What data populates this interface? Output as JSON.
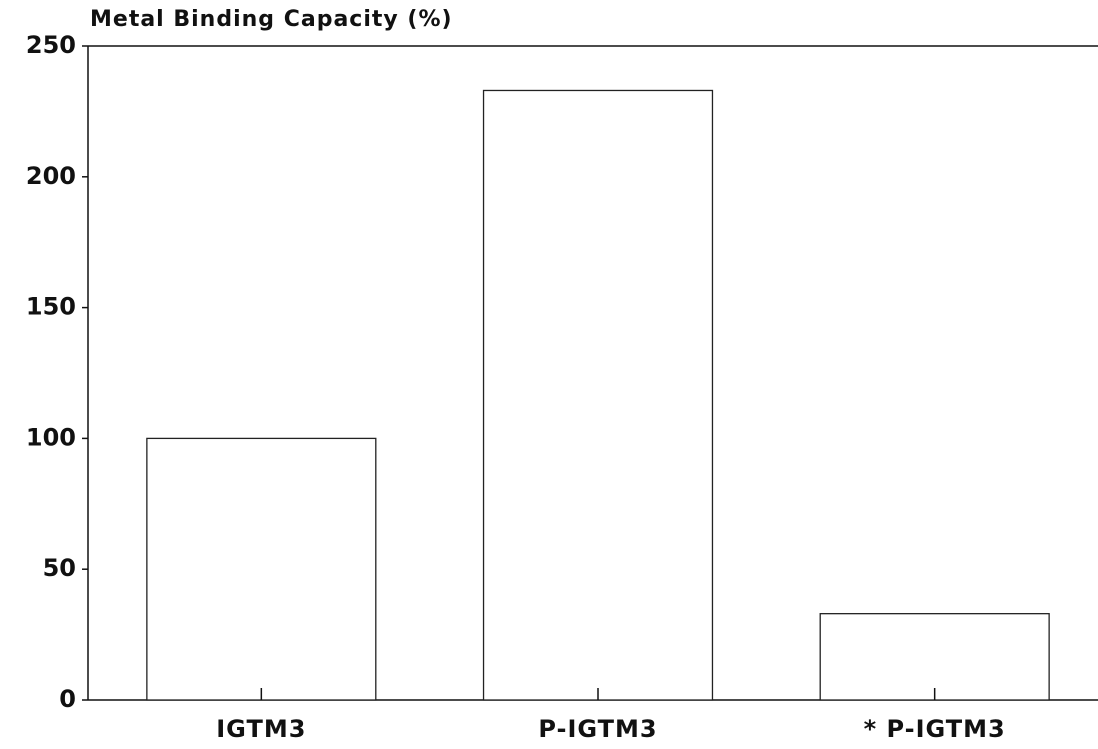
{
  "chart_data": {
    "type": "bar",
    "title": "Metal Binding Capacity (%)",
    "categories": [
      "IGTM3",
      "P-IGTM3",
      "* P-IGTM3"
    ],
    "values": [
      100,
      233,
      33
    ],
    "color": "#ffffff",
    "ylim": [
      0,
      250
    ],
    "yticks": [
      0,
      50,
      100,
      150,
      200,
      250
    ],
    "grid": false
  }
}
